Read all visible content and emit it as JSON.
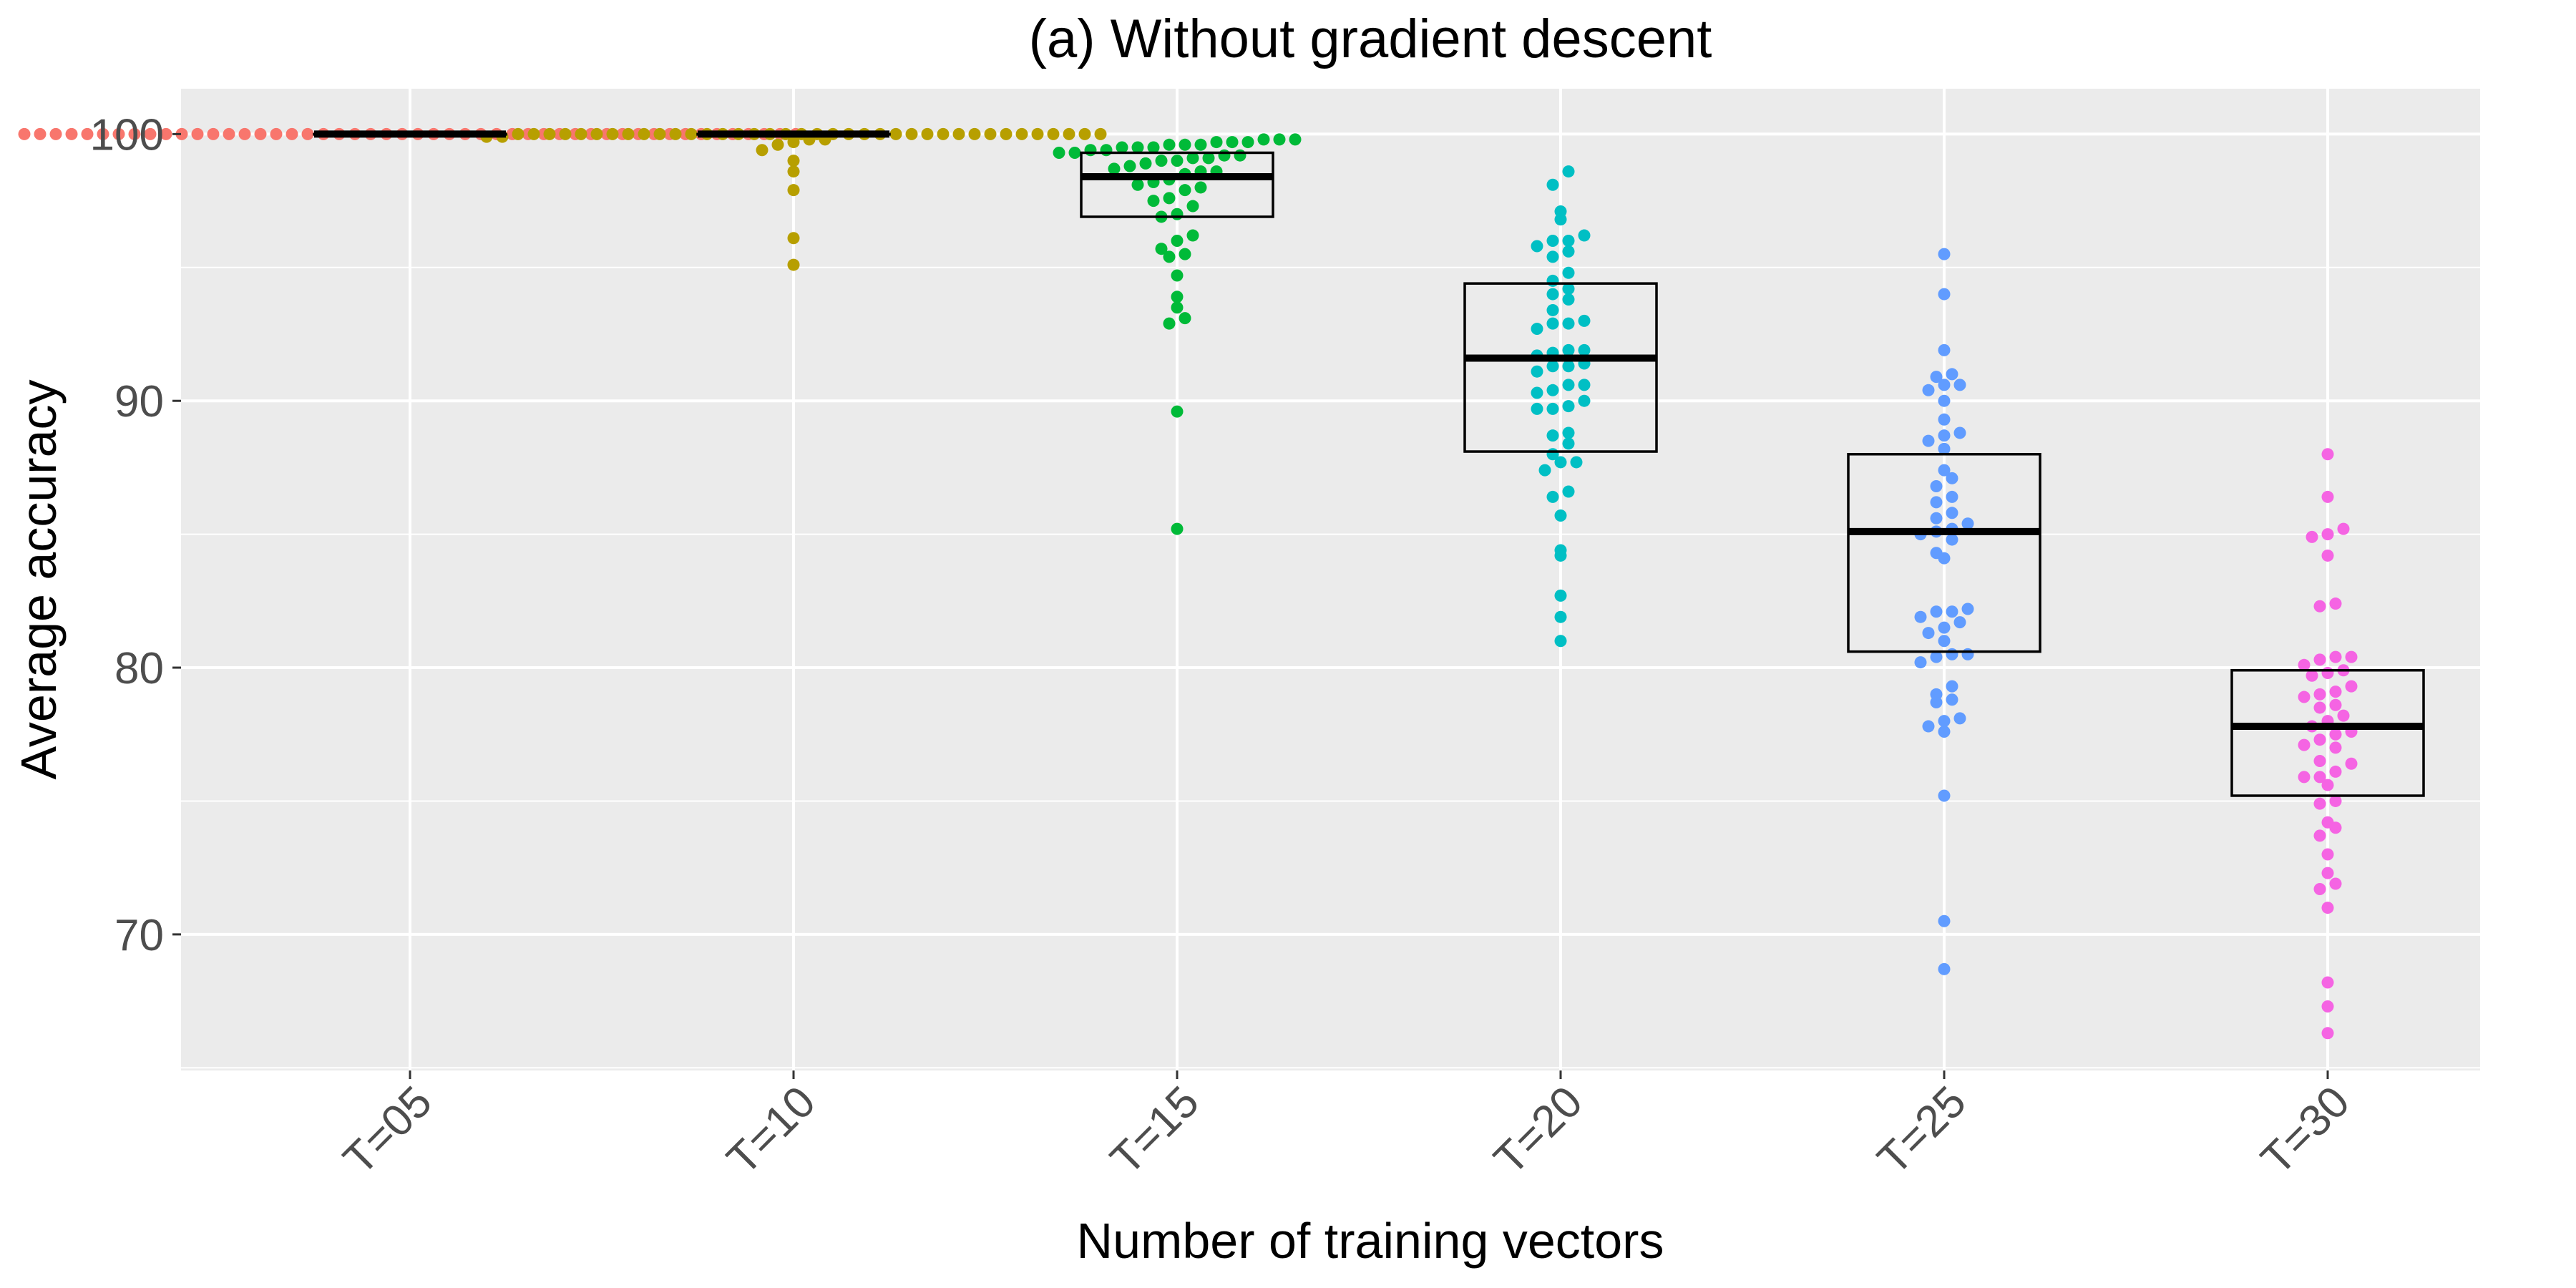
{
  "chart_data": {
    "type": "scatter",
    "subtype": "box-plot-with-jittered-points",
    "title": "(a) Without gradient descent",
    "xlabel": "Number of training vectors",
    "ylabel": "Average accuracy",
    "ylim": [
      64.9,
      101.7
    ],
    "yticks": [
      70,
      80,
      90,
      100
    ],
    "grid": true,
    "legend": "none",
    "panel_background": "#ebebeb",
    "categories": [
      "T=05",
      "T=10",
      "T=15",
      "T=20",
      "T=25",
      "T=30"
    ],
    "colors": [
      "#f8766d",
      "#b79f00",
      "#00ba38",
      "#00bfc4",
      "#619cff",
      "#f564e3"
    ],
    "boxes": [
      {
        "q1": 100.0,
        "median": 100.0,
        "q3": 100.0
      },
      {
        "q1": 100.0,
        "median": 100.0,
        "q3": 100.0
      },
      {
        "q1": 96.9,
        "median": 98.4,
        "q3": 99.3
      },
      {
        "q1": 88.1,
        "median": 91.6,
        "q3": 94.4
      },
      {
        "q1": 80.6,
        "median": 85.1,
        "q3": 88.0
      },
      {
        "q1": 75.2,
        "median": 77.8,
        "q3": 79.9
      }
    ],
    "series": [
      {
        "values": [
          100,
          100,
          100,
          100,
          100,
          100,
          100,
          100,
          100,
          100,
          100,
          100,
          100,
          100,
          100,
          100,
          100,
          100,
          100,
          100,
          100,
          100,
          100,
          100,
          100,
          100,
          100,
          100,
          100,
          100,
          100,
          100,
          100,
          100,
          100,
          100,
          100,
          100,
          100,
          100,
          100,
          100,
          100,
          100,
          100,
          100,
          100,
          100,
          100,
          100
        ]
      },
      {
        "values": [
          95.1,
          96.1,
          97.9,
          98.6,
          99.0,
          99.4,
          99.6,
          99.7,
          99.8,
          99.8,
          99.9,
          99.9,
          100,
          100,
          100,
          100,
          100,
          100,
          100,
          100,
          100,
          100,
          100,
          100,
          100,
          100,
          100,
          100,
          100,
          100,
          100,
          100,
          100,
          100,
          100,
          100,
          100,
          100,
          100,
          100,
          100,
          100,
          100,
          100,
          100,
          100,
          100,
          100,
          100,
          100
        ]
      },
      {
        "values": [
          85.2,
          89.6,
          92.9,
          93.1,
          93.5,
          93.9,
          94.7,
          95.4,
          95.5,
          95.7,
          96.0,
          96.2,
          96.9,
          97.0,
          97.3,
          97.5,
          97.6,
          97.9,
          98.0,
          98.1,
          98.2,
          98.3,
          98.5,
          98.6,
          98.6,
          98.7,
          98.8,
          98.9,
          99.0,
          99.0,
          99.1,
          99.1,
          99.2,
          99.2,
          99.3,
          99.3,
          99.4,
          99.4,
          99.5,
          99.5,
          99.5,
          99.6,
          99.6,
          99.6,
          99.7,
          99.7,
          99.7,
          99.8,
          99.8,
          99.8
        ]
      },
      {
        "values": [
          81.0,
          81.9,
          82.7,
          84.2,
          84.4,
          85.7,
          86.4,
          86.6,
          87.4,
          87.7,
          87.7,
          88.0,
          88.4,
          88.7,
          88.8,
          89.7,
          89.7,
          89.8,
          90.0,
          90.3,
          90.4,
          90.6,
          90.6,
          91.1,
          91.3,
          91.3,
          91.4,
          91.7,
          91.8,
          91.9,
          91.9,
          92.7,
          92.9,
          92.9,
          93.0,
          93.4,
          93.8,
          94.0,
          94.2,
          94.5,
          94.8,
          95.4,
          95.6,
          95.8,
          96.0,
          96.0,
          96.2,
          96.8,
          97.1,
          98.1,
          98.6
        ]
      },
      {
        "values": [
          68.7,
          70.5,
          75.2,
          77.6,
          77.8,
          78.0,
          78.1,
          78.7,
          78.8,
          79.0,
          79.3,
          80.2,
          80.4,
          80.5,
          80.5,
          81.0,
          81.3,
          81.5,
          81.7,
          81.9,
          82.1,
          82.1,
          82.2,
          84.1,
          84.3,
          84.8,
          85.0,
          85.1,
          85.2,
          85.4,
          85.6,
          85.8,
          86.2,
          86.4,
          86.8,
          87.1,
          87.4,
          88.2,
          88.5,
          88.7,
          88.8,
          89.3,
          90.0,
          90.4,
          90.6,
          90.6,
          90.9,
          91.0,
          91.9,
          94.0,
          95.5
        ]
      },
      {
        "values": [
          66.3,
          67.3,
          68.2,
          71.0,
          71.7,
          71.9,
          72.3,
          73.0,
          73.7,
          74.0,
          74.2,
          74.9,
          75.0,
          75.6,
          75.9,
          75.9,
          76.1,
          76.4,
          76.5,
          77.0,
          77.1,
          77.3,
          77.5,
          77.6,
          77.8,
          78.0,
          78.2,
          78.5,
          78.6,
          78.9,
          79.0,
          79.1,
          79.3,
          79.7,
          79.8,
          79.9,
          80.1,
          80.3,
          80.4,
          80.4,
          82.3,
          82.4,
          84.2,
          84.9,
          85.0,
          85.2,
          86.4,
          88.0
        ]
      }
    ]
  }
}
